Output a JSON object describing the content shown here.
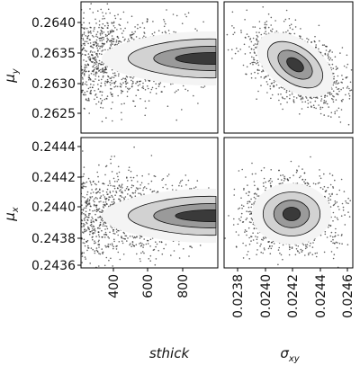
{
  "chart_data": [
    {
      "type": "scatter",
      "row_label": "μy",
      "column_label": "sthick",
      "x_ticks": [
        "400",
        "600",
        "800"
      ],
      "y_ticks": [
        "0.2625",
        "0.2630",
        "0.2635",
        "0.2640"
      ],
      "xlim": [
        300,
        980
      ],
      "ylim": [
        0.26215,
        0.26445
      ],
      "density_center": {
        "x": 930,
        "y": 0.26335
      },
      "contour_levels": 3,
      "style": "2d-histogram-with-contours-and-outlier-points"
    },
    {
      "type": "scatter",
      "row_label": "μy",
      "column_label": "σxy",
      "x_ticks": [
        "0.0238",
        "0.0240",
        "0.0242",
        "0.0244",
        "0.0246"
      ],
      "y_ticks": [
        "0.2625",
        "0.2630",
        "0.2635",
        "0.2640"
      ],
      "xlim": [
        0.02374,
        0.02466
      ],
      "ylim": [
        0.26215,
        0.26445
      ],
      "density_center": {
        "x": 0.02425,
        "y": 0.26337
      },
      "contour_levels": 3,
      "style": "2d-histogram-with-contours-and-outlier-points"
    },
    {
      "type": "scatter",
      "row_label": "μx",
      "column_label": "sthick",
      "x_ticks": [
        "400",
        "600",
        "800"
      ],
      "y_ticks": [
        "0.2436",
        "0.2438",
        "0.2440",
        "0.2442",
        "0.2444"
      ],
      "xlim": [
        300,
        980
      ],
      "ylim": [
        0.24358,
        0.24452
      ],
      "density_center": {
        "x": 930,
        "y": 0.24393
      },
      "contour_levels": 3,
      "style": "2d-histogram-with-contours-and-outlier-points"
    },
    {
      "type": "scatter",
      "row_label": "μx",
      "column_label": "σxy",
      "x_ticks": [
        "0.0238",
        "0.0240",
        "0.0242",
        "0.0244",
        "0.0246"
      ],
      "y_ticks": [
        "0.2436",
        "0.2438",
        "0.2440",
        "0.2442",
        "0.2444"
      ],
      "xlim": [
        0.02374,
        0.02466
      ],
      "ylim": [
        0.24358,
        0.24452
      ],
      "density_center": {
        "x": 0.02423,
        "y": 0.24396
      },
      "contour_levels": 3,
      "style": "2d-histogram-with-contours-and-outlier-points"
    }
  ],
  "labels": {
    "row_top": "μ",
    "row_top_sub": "y",
    "row_bottom": "μ",
    "row_bottom_sub": "x",
    "col_left": "sthick",
    "col_right": "σ",
    "col_right_sub": "xy"
  }
}
